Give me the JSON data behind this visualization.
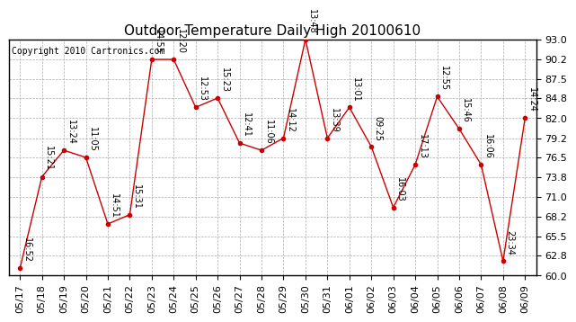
{
  "title": "Outdoor Temperature Daily High 20100610",
  "copyright": "Copyright 2010 Cartronics.com",
  "x_labels": [
    "05/17",
    "05/18",
    "05/19",
    "05/20",
    "05/21",
    "05/22",
    "05/23",
    "05/24",
    "05/25",
    "05/26",
    "05/27",
    "05/28",
    "05/29",
    "05/30",
    "05/31",
    "06/01",
    "06/02",
    "06/03",
    "06/04",
    "06/05",
    "06/06",
    "06/07",
    "06/08",
    "06/09"
  ],
  "y_values": [
    61.0,
    73.8,
    77.5,
    76.5,
    67.2,
    68.5,
    90.2,
    90.2,
    83.5,
    84.8,
    78.5,
    77.5,
    79.2,
    93.0,
    79.2,
    83.5,
    78.0,
    69.5,
    75.5,
    85.0,
    80.5,
    75.5,
    62.0,
    82.0
  ],
  "time_labels": [
    "16:52",
    "15:21",
    "13:24",
    "11:05",
    "14:51",
    "15:31",
    "14:55",
    "12:20",
    "12:53",
    "15:23",
    "12:41",
    "11:06",
    "14:12",
    "13:48",
    "13:39",
    "13:01",
    "09:25",
    "16:03",
    "17:13",
    "12:55",
    "15:46",
    "16:06",
    "23:34",
    "14:24"
  ],
  "ylim": [
    60.0,
    93.0
  ],
  "yticks": [
    60.0,
    62.8,
    65.5,
    68.2,
    71.0,
    73.8,
    76.5,
    79.2,
    82.0,
    84.8,
    87.5,
    90.2,
    93.0
  ],
  "line_color": "#cc0000",
  "marker_color": "#cc0000",
  "bg_color": "#ffffff",
  "grid_color": "#aaaaaa",
  "title_fontsize": 11,
  "copyright_fontsize": 7,
  "tick_label_fontsize": 8,
  "annotation_fontsize": 7
}
